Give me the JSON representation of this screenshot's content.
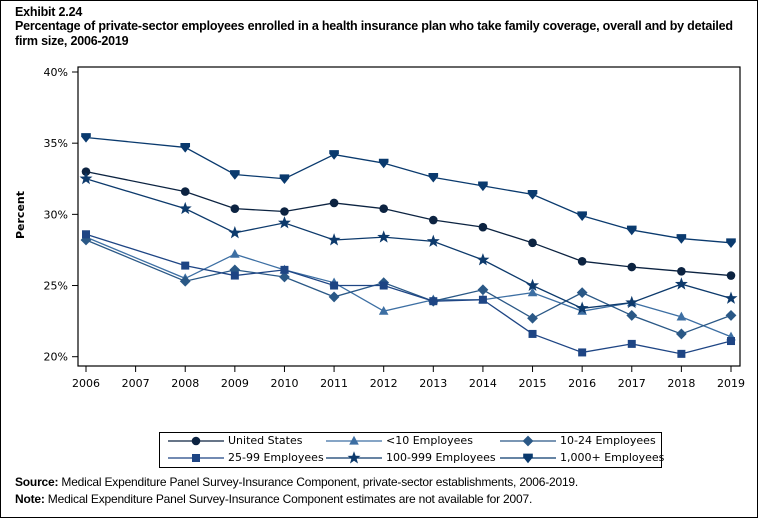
{
  "header": {
    "exhibit": "Exhibit 2.24",
    "title": "Percentage of private-sector employees enrolled in a health insurance plan who take family coverage, overall and by detailed firm size, 2006-2019"
  },
  "chart_data": {
    "type": "line",
    "title": "Percentage of private-sector employees enrolled in a health insurance plan who take family coverage, overall and by detailed firm size, 2006-2019",
    "xlabel": "",
    "ylabel": "Percent",
    "x_ticks": [
      "2006",
      "2007",
      "2008",
      "2009",
      "2010",
      "2011",
      "2012",
      "2013",
      "2014",
      "2015",
      "2016",
      "2017",
      "2018",
      "2019"
    ],
    "x_range": [
      2006,
      2019
    ],
    "ylim": [
      20,
      40
    ],
    "y_ticks": [
      20,
      25,
      30,
      35,
      40
    ],
    "y_tick_labels": [
      "20%",
      "25%",
      "30%",
      "35%",
      "40%"
    ],
    "grid": false,
    "legend_position": "bottom",
    "x": [
      2006,
      2008,
      2009,
      2010,
      2011,
      2012,
      2013,
      2014,
      2015,
      2016,
      2017,
      2018,
      2019
    ],
    "series": [
      {
        "name": "United States",
        "marker": "circle",
        "color": "#0c2341",
        "values": [
          33.0,
          31.6,
          30.4,
          30.2,
          30.8,
          30.4,
          29.6,
          29.1,
          28.0,
          26.7,
          26.3,
          26.0,
          25.7
        ]
      },
      {
        "name": "<10 Employees",
        "marker": "triangle",
        "color": "#3d6fa3",
        "values": [
          28.4,
          25.5,
          27.2,
          26.1,
          25.2,
          23.2,
          24.0,
          24.0,
          24.5,
          23.2,
          23.8,
          22.8,
          21.4
        ]
      },
      {
        "name": "10-24 Employees",
        "marker": "diamond",
        "color": "#2a5886",
        "values": [
          28.2,
          25.3,
          26.1,
          25.6,
          24.2,
          25.2,
          23.9,
          24.7,
          22.7,
          24.5,
          22.9,
          21.6,
          22.9
        ]
      },
      {
        "name": "25-99 Employees",
        "marker": "square",
        "color": "#1e4584",
        "values": [
          28.6,
          26.4,
          25.7,
          26.1,
          25.0,
          25.0,
          23.9,
          24.0,
          21.6,
          20.3,
          20.9,
          20.2,
          21.1
        ]
      },
      {
        "name": "100-999 Employees",
        "marker": "star",
        "color": "#0d3a6c",
        "values": [
          32.5,
          30.4,
          28.7,
          29.4,
          28.2,
          28.4,
          28.1,
          26.8,
          25.0,
          23.4,
          23.8,
          25.1,
          24.1
        ]
      },
      {
        "name": "1,000+ Employees",
        "marker": "triangle-down",
        "color": "#0a3a6e",
        "values": [
          35.4,
          34.7,
          32.8,
          32.5,
          34.2,
          33.6,
          32.6,
          32.0,
          31.4,
          29.9,
          28.9,
          28.3,
          28.0
        ]
      }
    ]
  },
  "legend": {
    "items": [
      {
        "label": "United States",
        "marker": "circle",
        "color": "#0c2341"
      },
      {
        "label": "<10 Employees",
        "marker": "triangle",
        "color": "#3d6fa3"
      },
      {
        "label": "10-24 Employees",
        "marker": "diamond",
        "color": "#2a5886"
      },
      {
        "label": "25-99 Employees",
        "marker": "square",
        "color": "#1e4584"
      },
      {
        "label": "100-999 Employees",
        "marker": "star",
        "color": "#0d3a6c"
      },
      {
        "label": "1,000+ Employees",
        "marker": "triangle-down",
        "color": "#0a3a6e"
      }
    ]
  },
  "footer": {
    "source_label": "Source:",
    "source_text": " Medical Expenditure Panel Survey-Insurance Component, private-sector establishments, 2006-2019.",
    "note_label": "Note:",
    "note_text": " Medical Expenditure Panel Survey-Insurance Component estimates are not available for 2007."
  }
}
